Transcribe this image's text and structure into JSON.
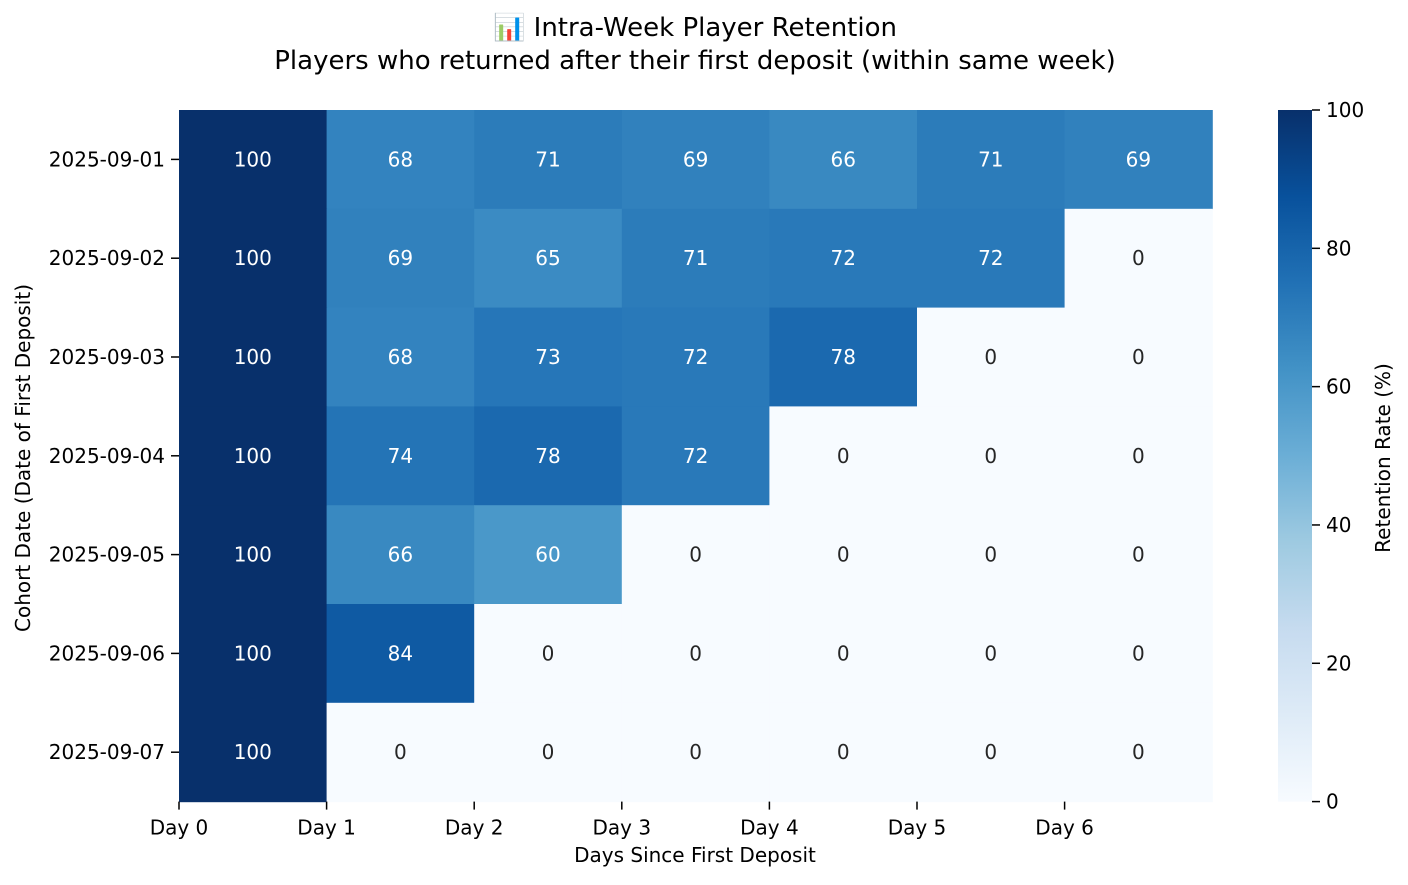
{
  "chart_data": {
    "type": "heatmap",
    "title": "📊 Intra-Week Player Retention",
    "subtitle": "Players who returned after their first deposit (within same week)",
    "xlabel": "Days Since First Deposit",
    "ylabel": "Cohort Date (Date of First Deposit)",
    "x_categories": [
      "Day 0",
      "Day 1",
      "Day 2",
      "Day 3",
      "Day 4",
      "Day 5",
      "Day 6"
    ],
    "y_categories": [
      "2025-09-01",
      "2025-09-02",
      "2025-09-03",
      "2025-09-04",
      "2025-09-05",
      "2025-09-06",
      "2025-09-07"
    ],
    "values": [
      [
        100,
        68,
        71,
        69,
        66,
        71,
        69
      ],
      [
        100,
        69,
        65,
        71,
        72,
        72,
        0
      ],
      [
        100,
        68,
        73,
        72,
        78,
        0,
        0
      ],
      [
        100,
        74,
        78,
        72,
        0,
        0,
        0
      ],
      [
        100,
        66,
        60,
        0,
        0,
        0,
        0
      ],
      [
        100,
        84,
        0,
        0,
        0,
        0,
        0
      ],
      [
        100,
        0,
        0,
        0,
        0,
        0,
        0
      ]
    ],
    "colorbar": {
      "label": "Retention Rate (%)",
      "range": [
        0,
        100
      ],
      "ticks": [
        "0",
        "20",
        "40",
        "60",
        "80",
        "100"
      ],
      "colormap": "Blues"
    },
    "annotations": true,
    "grid": false,
    "legend": "none"
  }
}
